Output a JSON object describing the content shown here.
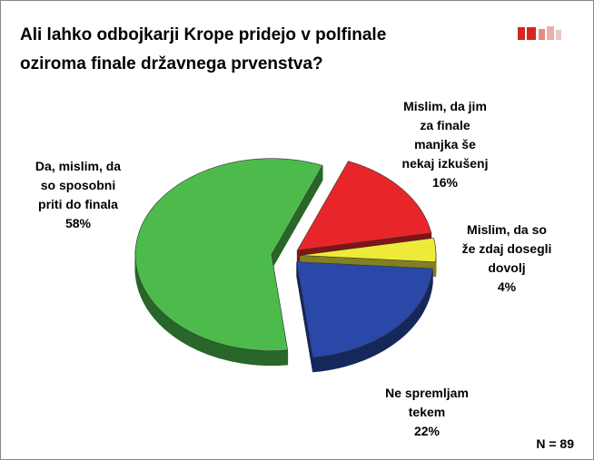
{
  "chart_data": {
    "type": "pie",
    "title": [
      "Ali lahko odbojkarji Krope pridejo v polfinale",
      "oziroma finale državnega prvenstva?"
    ],
    "labels": [
      [
        "Mislim, da jim",
        "za finale",
        "manjka še",
        "nekaj izkušenj"
      ],
      [
        "Mislim, da so",
        "že zdaj dosegli",
        "dovolj"
      ],
      [
        "Ne spremljam",
        "tekem"
      ],
      [
        "Da, mislim, da",
        "so sposobni",
        "priti do finala"
      ]
    ],
    "values": [
      16,
      4,
      22,
      58
    ],
    "value_labels": [
      "16%",
      "4%",
      "22%",
      "58%"
    ],
    "colors": [
      "#e8262a",
      "#eeea3a",
      "#2a48a8",
      "#4cbb4c"
    ],
    "note": "N = 89"
  }
}
